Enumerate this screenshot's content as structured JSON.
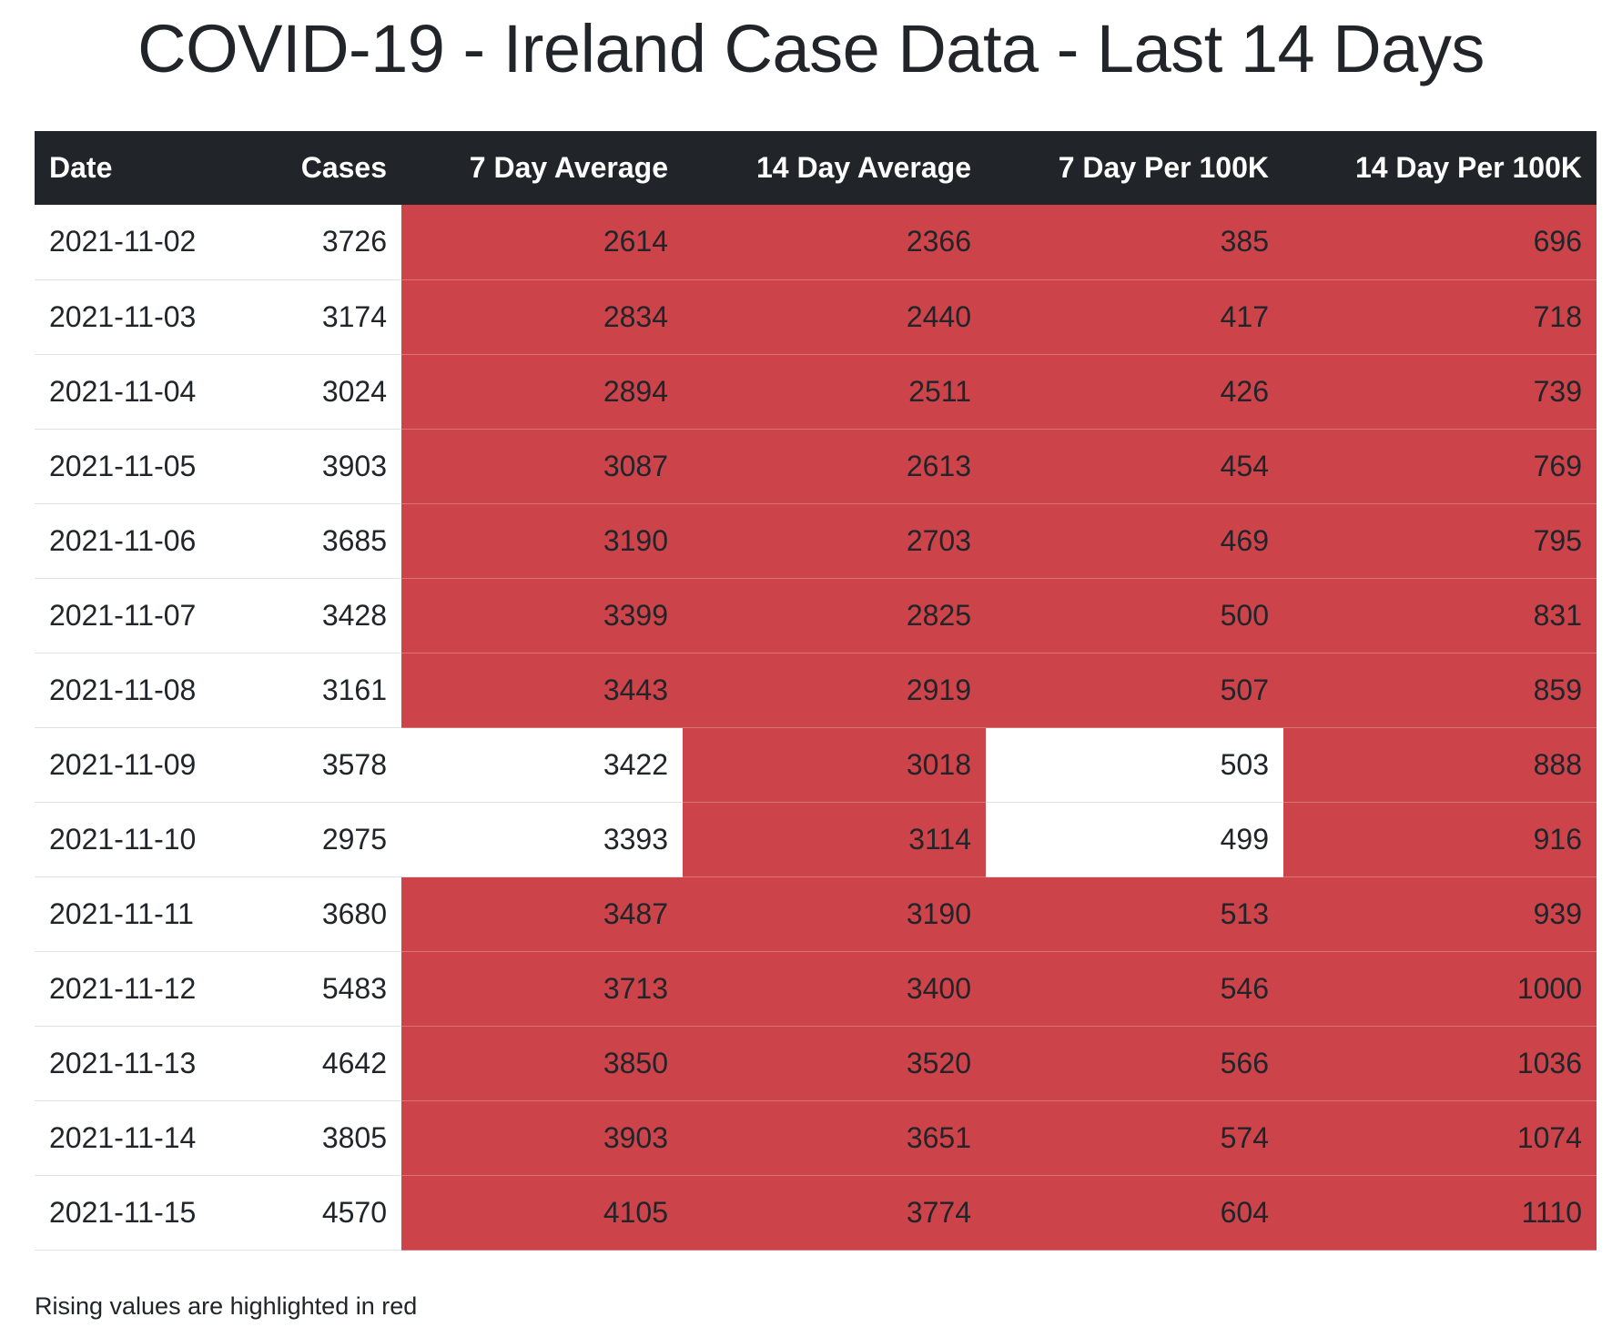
{
  "page": {
    "title": "COVID-19 - Ireland Case Data - Last 14 Days",
    "footnote": "Rising values are highlighted in red"
  },
  "colors": {
    "header_bg": "#212529",
    "rising_highlight": "#cc434a"
  },
  "table": {
    "columns": [
      "Date",
      "Cases",
      "7 Day Average",
      "14 Day Average",
      "7 Day Per 100K",
      "14 Day Per 100K"
    ],
    "rows": [
      {
        "date": "2021-11-02",
        "cases": "3726",
        "avg7": "2614",
        "avg14": "2366",
        "per100k7": "385",
        "per100k14": "696",
        "rising": {
          "avg7": true,
          "avg14": true,
          "per100k7": true,
          "per100k14": true
        }
      },
      {
        "date": "2021-11-03",
        "cases": "3174",
        "avg7": "2834",
        "avg14": "2440",
        "per100k7": "417",
        "per100k14": "718",
        "rising": {
          "avg7": true,
          "avg14": true,
          "per100k7": true,
          "per100k14": true
        }
      },
      {
        "date": "2021-11-04",
        "cases": "3024",
        "avg7": "2894",
        "avg14": "2511",
        "per100k7": "426",
        "per100k14": "739",
        "rising": {
          "avg7": true,
          "avg14": true,
          "per100k7": true,
          "per100k14": true
        }
      },
      {
        "date": "2021-11-05",
        "cases": "3903",
        "avg7": "3087",
        "avg14": "2613",
        "per100k7": "454",
        "per100k14": "769",
        "rising": {
          "avg7": true,
          "avg14": true,
          "per100k7": true,
          "per100k14": true
        }
      },
      {
        "date": "2021-11-06",
        "cases": "3685",
        "avg7": "3190",
        "avg14": "2703",
        "per100k7": "469",
        "per100k14": "795",
        "rising": {
          "avg7": true,
          "avg14": true,
          "per100k7": true,
          "per100k14": true
        }
      },
      {
        "date": "2021-11-07",
        "cases": "3428",
        "avg7": "3399",
        "avg14": "2825",
        "per100k7": "500",
        "per100k14": "831",
        "rising": {
          "avg7": true,
          "avg14": true,
          "per100k7": true,
          "per100k14": true
        }
      },
      {
        "date": "2021-11-08",
        "cases": "3161",
        "avg7": "3443",
        "avg14": "2919",
        "per100k7": "507",
        "per100k14": "859",
        "rising": {
          "avg7": true,
          "avg14": true,
          "per100k7": true,
          "per100k14": true
        }
      },
      {
        "date": "2021-11-09",
        "cases": "3578",
        "avg7": "3422",
        "avg14": "3018",
        "per100k7": "503",
        "per100k14": "888",
        "rising": {
          "avg7": false,
          "avg14": true,
          "per100k7": false,
          "per100k14": true
        }
      },
      {
        "date": "2021-11-10",
        "cases": "2975",
        "avg7": "3393",
        "avg14": "3114",
        "per100k7": "499",
        "per100k14": "916",
        "rising": {
          "avg7": false,
          "avg14": true,
          "per100k7": false,
          "per100k14": true
        }
      },
      {
        "date": "2021-11-11",
        "cases": "3680",
        "avg7": "3487",
        "avg14": "3190",
        "per100k7": "513",
        "per100k14": "939",
        "rising": {
          "avg7": true,
          "avg14": true,
          "per100k7": true,
          "per100k14": true
        }
      },
      {
        "date": "2021-11-12",
        "cases": "5483",
        "avg7": "3713",
        "avg14": "3400",
        "per100k7": "546",
        "per100k14": "1000",
        "rising": {
          "avg7": true,
          "avg14": true,
          "per100k7": true,
          "per100k14": true
        }
      },
      {
        "date": "2021-11-13",
        "cases": "4642",
        "avg7": "3850",
        "avg14": "3520",
        "per100k7": "566",
        "per100k14": "1036",
        "rising": {
          "avg7": true,
          "avg14": true,
          "per100k7": true,
          "per100k14": true
        }
      },
      {
        "date": "2021-11-14",
        "cases": "3805",
        "avg7": "3903",
        "avg14": "3651",
        "per100k7": "574",
        "per100k14": "1074",
        "rising": {
          "avg7": true,
          "avg14": true,
          "per100k7": true,
          "per100k14": true
        }
      },
      {
        "date": "2021-11-15",
        "cases": "4570",
        "avg7": "4105",
        "avg14": "3774",
        "per100k7": "604",
        "per100k14": "1110",
        "rising": {
          "avg7": true,
          "avg14": true,
          "per100k7": true,
          "per100k14": true
        }
      }
    ]
  }
}
